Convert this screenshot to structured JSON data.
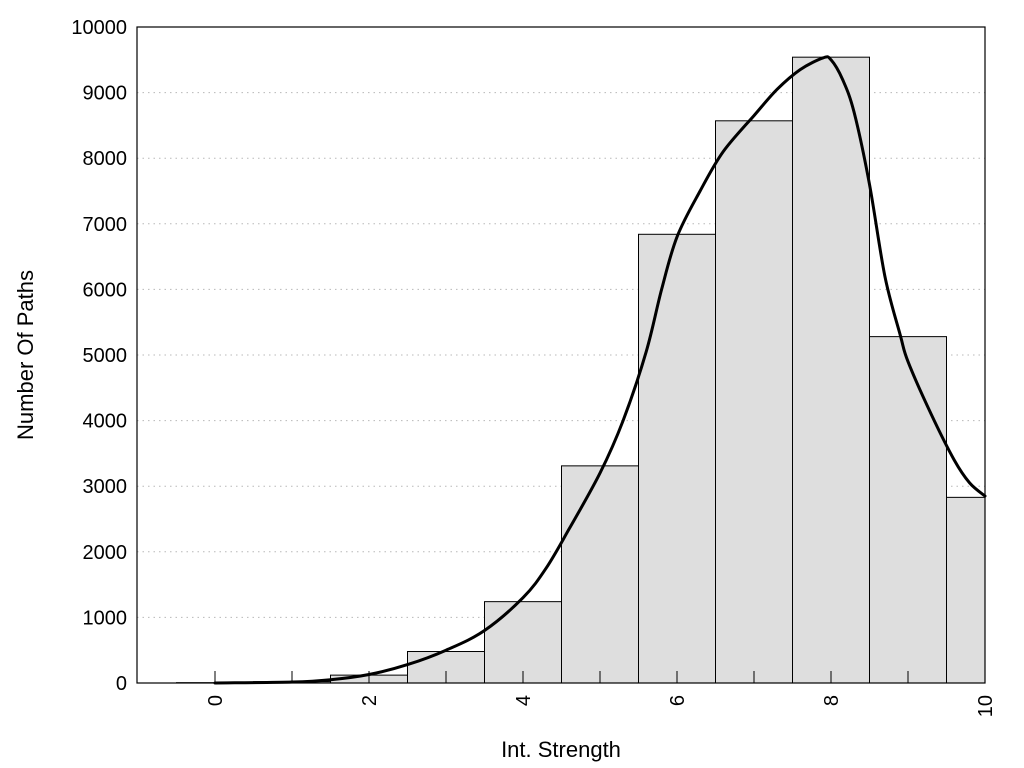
{
  "chart_data": {
    "type": "bar",
    "xlabel": "Int. Strength",
    "ylabel": "Number Of Paths",
    "xlim": [
      -1,
      10
    ],
    "ylim": [
      0,
      10000
    ],
    "x_ticks": [
      0,
      2,
      4,
      6,
      8,
      10
    ],
    "y_ticks": [
      0,
      1000,
      2000,
      3000,
      4000,
      5000,
      6000,
      7000,
      8000,
      9000,
      10000
    ],
    "grid": "horizontal dotted",
    "bar_color": "#dedede",
    "bins": [
      {
        "x": 0,
        "value": 5
      },
      {
        "x": 1,
        "value": 20
      },
      {
        "x": 2,
        "value": 120
      },
      {
        "x": 3,
        "value": 480
      },
      {
        "x": 4,
        "value": 1240
      },
      {
        "x": 5,
        "value": 3310
      },
      {
        "x": 6,
        "value": 6840
      },
      {
        "x": 7,
        "value": 8570
      },
      {
        "x": 8,
        "value": 9540
      },
      {
        "x": 9,
        "value": 5280
      },
      {
        "x": 10,
        "value": 2830
      }
    ],
    "curve": {
      "x": [
        0,
        1,
        1.5,
        2,
        2.5,
        3,
        3.5,
        4,
        4.3,
        4.6,
        5,
        5.3,
        5.6,
        5.8,
        6,
        6.3,
        6.6,
        7,
        7.3,
        7.6,
        7.9,
        8,
        8.15,
        8.3,
        8.5,
        8.7,
        8.9,
        9,
        9.3,
        9.6,
        9.8,
        10
      ],
      "y": [
        0,
        15,
        50,
        130,
        280,
        500,
        800,
        1300,
        1750,
        2350,
        3200,
        4000,
        5050,
        6000,
        6800,
        7500,
        8100,
        8650,
        9050,
        9350,
        9530,
        9500,
        9200,
        8700,
        7600,
        6200,
        5300,
        4900,
        4100,
        3400,
        3050,
        2850
      ]
    }
  }
}
